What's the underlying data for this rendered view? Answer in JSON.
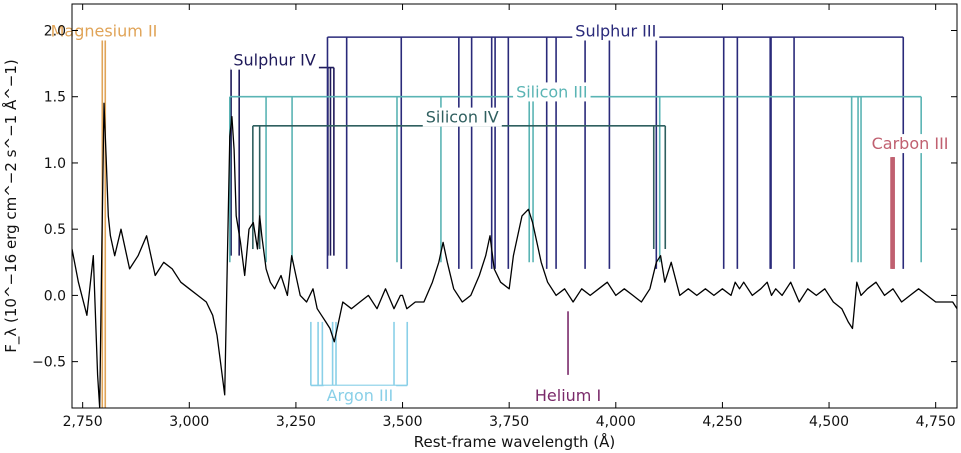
{
  "chart_data": {
    "type": "line",
    "xlabel": "Rest-frame wavelength (Å)",
    "ylabel": "F_λ (10^−16 erg cm^−2 s^−1 Å^−1)",
    "xlim": [
      2725,
      4800
    ],
    "ylim": [
      -0.85,
      2.2
    ],
    "x_ticks": [
      2750,
      3000,
      3250,
      3500,
      3750,
      4000,
      4250,
      4500,
      4750
    ],
    "x_tick_labels": [
      "2,750",
      "3,000",
      "3,250",
      "3,500",
      "3,750",
      "4,000",
      "4,250",
      "4,500",
      "4,750"
    ],
    "y_ticks": [
      -0.5,
      0.0,
      0.5,
      1.0,
      1.5,
      2.0
    ],
    "y_tick_labels": [
      "−0.5",
      "0.0",
      "0.5",
      "1.0",
      "1.5",
      "2.0"
    ],
    "grid": false,
    "series": [
      {
        "color": "#000000",
        "x": [
          2725,
          2740,
          2760,
          2775,
          2785,
          2790,
          2795,
          2800,
          2805,
          2810,
          2815,
          2825,
          2840,
          2860,
          2880,
          2900,
          2920,
          2940,
          2960,
          2980,
          3000,
          3020,
          3040,
          3055,
          3065,
          3075,
          3083,
          3090,
          3095,
          3100,
          3105,
          3110,
          3120,
          3130,
          3140,
          3150,
          3160,
          3165,
          3170,
          3180,
          3190,
          3200,
          3215,
          3230,
          3240,
          3250,
          3260,
          3275,
          3290,
          3300,
          3310,
          3320,
          3330,
          3340,
          3350,
          3360,
          3380,
          3400,
          3420,
          3440,
          3460,
          3480,
          3495,
          3500,
          3510,
          3530,
          3550,
          3570,
          3585,
          3595,
          3605,
          3620,
          3640,
          3660,
          3680,
          3695,
          3705,
          3715,
          3730,
          3750,
          3760,
          3780,
          3795,
          3805,
          3815,
          3825,
          3840,
          3860,
          3880,
          3900,
          3920,
          3940,
          3960,
          3980,
          4000,
          4020,
          4040,
          4060,
          4080,
          4095,
          4105,
          4115,
          4130,
          4150,
          4170,
          4190,
          4210,
          4230,
          4250,
          4270,
          4280,
          4290,
          4300,
          4320,
          4340,
          4355,
          4365,
          4375,
          4390,
          4410,
          4430,
          4450,
          4470,
          4490,
          4510,
          4530,
          4545,
          4555,
          4565,
          4575,
          4590,
          4610,
          4630,
          4650,
          4670,
          4690,
          4710,
          4730,
          4750,
          4770,
          4790,
          4800
        ],
        "y": [
          0.35,
          0.1,
          -0.15,
          0.3,
          -0.6,
          -0.85,
          0.4,
          1.45,
          1.05,
          0.6,
          0.45,
          0.3,
          0.5,
          0.2,
          0.3,
          0.45,
          0.15,
          0.25,
          0.2,
          0.1,
          0.05,
          0.0,
          -0.05,
          -0.15,
          -0.3,
          -0.55,
          -0.75,
          0.4,
          1.2,
          1.35,
          1.1,
          0.6,
          0.4,
          0.15,
          0.5,
          0.55,
          0.35,
          0.6,
          0.45,
          0.2,
          0.1,
          0.05,
          0.15,
          0.0,
          0.3,
          0.15,
          0.0,
          -0.05,
          0.05,
          -0.1,
          -0.15,
          -0.2,
          -0.25,
          -0.35,
          -0.2,
          -0.05,
          -0.1,
          -0.05,
          0.0,
          -0.1,
          0.05,
          -0.1,
          0.0,
          0.0,
          -0.1,
          -0.05,
          -0.05,
          0.1,
          0.25,
          0.4,
          0.25,
          0.05,
          -0.05,
          0.0,
          0.15,
          0.3,
          0.45,
          0.2,
          0.1,
          0.05,
          0.3,
          0.6,
          0.65,
          0.55,
          0.4,
          0.25,
          0.1,
          0.0,
          0.05,
          -0.05,
          0.05,
          0.0,
          0.05,
          0.1,
          0.0,
          0.05,
          0.0,
          -0.05,
          0.05,
          0.25,
          0.3,
          0.1,
          0.25,
          0.0,
          0.05,
          0.0,
          0.05,
          0.0,
          0.05,
          0.0,
          0.1,
          0.05,
          0.1,
          0.0,
          0.05,
          0.1,
          0.0,
          0.05,
          0.0,
          0.1,
          -0.05,
          0.05,
          0.0,
          0.05,
          -0.05,
          -0.1,
          -0.2,
          -0.25,
          0.1,
          0.0,
          0.05,
          0.1,
          0.0,
          0.05,
          -0.05,
          0.0,
          0.05,
          0.0,
          -0.05,
          -0.05,
          -0.05,
          -0.1
        ]
      }
    ],
    "line_groups": [
      {
        "label": "Magnesium II",
        "color": "#e0a458",
        "bar_y": 1.95,
        "label_x": 2800,
        "label_y": 2.0,
        "wavelengths": [
          2796,
          2803
        ],
        "line_bottom": -0.85
      },
      {
        "label": "Sulphur IV",
        "color": "#1f1a5a",
        "bar_y": 1.72,
        "label_x": 3200,
        "label_y": 1.78,
        "wavelengths": [
          3098,
          3117,
          3325,
          3331,
          3339
        ],
        "line_bottom": 0.3
      },
      {
        "label": "Sulphur III",
        "color": "#2a2a7a",
        "bar_y": 1.95,
        "label_x": 4000,
        "label_y": 2.0,
        "wavelengths": [
          3324,
          3369,
          3497,
          3632,
          3662,
          3709,
          3717,
          3748,
          3838,
          3860,
          3928,
          3985,
          4095,
          4253,
          4285,
          4362,
          4364,
          4418,
          4674
        ],
        "line_bottom": 0.2
      },
      {
        "label": "Silicon III",
        "color": "#5ab4b4",
        "bar_y": 1.5,
        "label_x": 3850,
        "label_y": 1.54,
        "wavelengths": [
          3095,
          3180,
          3241,
          3487,
          3590,
          3797,
          3806,
          4103,
          4553,
          4568,
          4575,
          4716
        ],
        "line_bottom": 0.25
      },
      {
        "label": "Silicon IV",
        "color": "#2f5f5f",
        "bar_y": 1.28,
        "label_x": 3640,
        "label_y": 1.35,
        "wavelengths": [
          3149,
          3165,
          4089,
          4116
        ],
        "line_bottom": 0.35
      },
      {
        "label": "Carbon III",
        "color": "#c06070",
        "bar_y": null,
        "label_x": 4690,
        "label_y": 1.15,
        "wavelengths": [
          4647,
          4650,
          4651
        ],
        "line_bottom": 0.2
      },
      {
        "label": "Argon III",
        "color": "#8ad0e8",
        "bar_y": -0.68,
        "label_x": 3400,
        "label_y": -0.72,
        "wavelengths": [
          3285,
          3302,
          3312,
          3336,
          3344,
          3480,
          3511
        ],
        "line_top": -0.2,
        "label_below": true
      },
      {
        "label": "Helium I",
        "color": "#7a2a6a",
        "bar_y": null,
        "label_x": 3888,
        "label_y": -0.72,
        "wavelengths": [
          3888
        ],
        "line_top": -0.12,
        "line_bottom": -0.6,
        "label_below": true
      }
    ]
  }
}
